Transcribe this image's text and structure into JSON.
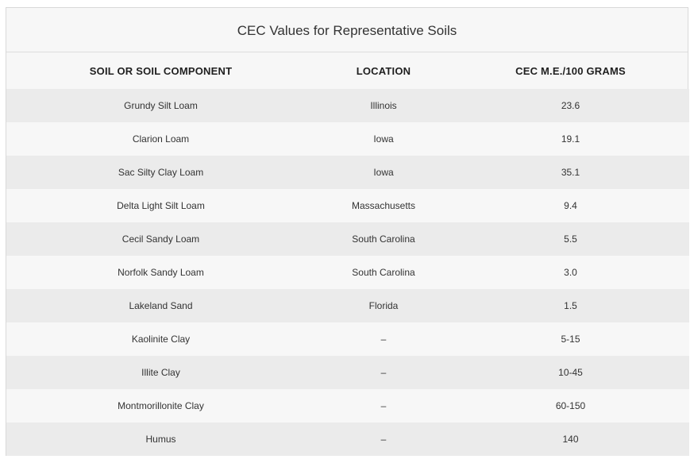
{
  "table": {
    "title": "CEC Values for Representative Soils",
    "headers": [
      "SOIL OR SOIL COMPONENT",
      "LOCATION",
      "CEC M.E./100 GRAMS"
    ],
    "rows": [
      [
        "Grundy Silt Loam",
        "Illinois",
        "23.6"
      ],
      [
        "Clarion Loam",
        "Iowa",
        "19.1"
      ],
      [
        "Sac Silty Clay Loam",
        "Iowa",
        "35.1"
      ],
      [
        "Delta Light Silt Loam",
        "Massachusetts",
        "9.4"
      ],
      [
        "Cecil Sandy Loam",
        "South Carolina",
        "5.5"
      ],
      [
        "Norfolk Sandy Loam",
        "South Carolina",
        "3.0"
      ],
      [
        "Lakeland Sand",
        "Florida",
        "1.5"
      ],
      [
        "Kaolinite Clay",
        "–",
        "5-15"
      ],
      [
        "Illite Clay",
        "–",
        "10-45"
      ],
      [
        "Montmorillonite Clay",
        "–",
        "60-150"
      ],
      [
        "Humus",
        "–",
        "140"
      ]
    ]
  }
}
